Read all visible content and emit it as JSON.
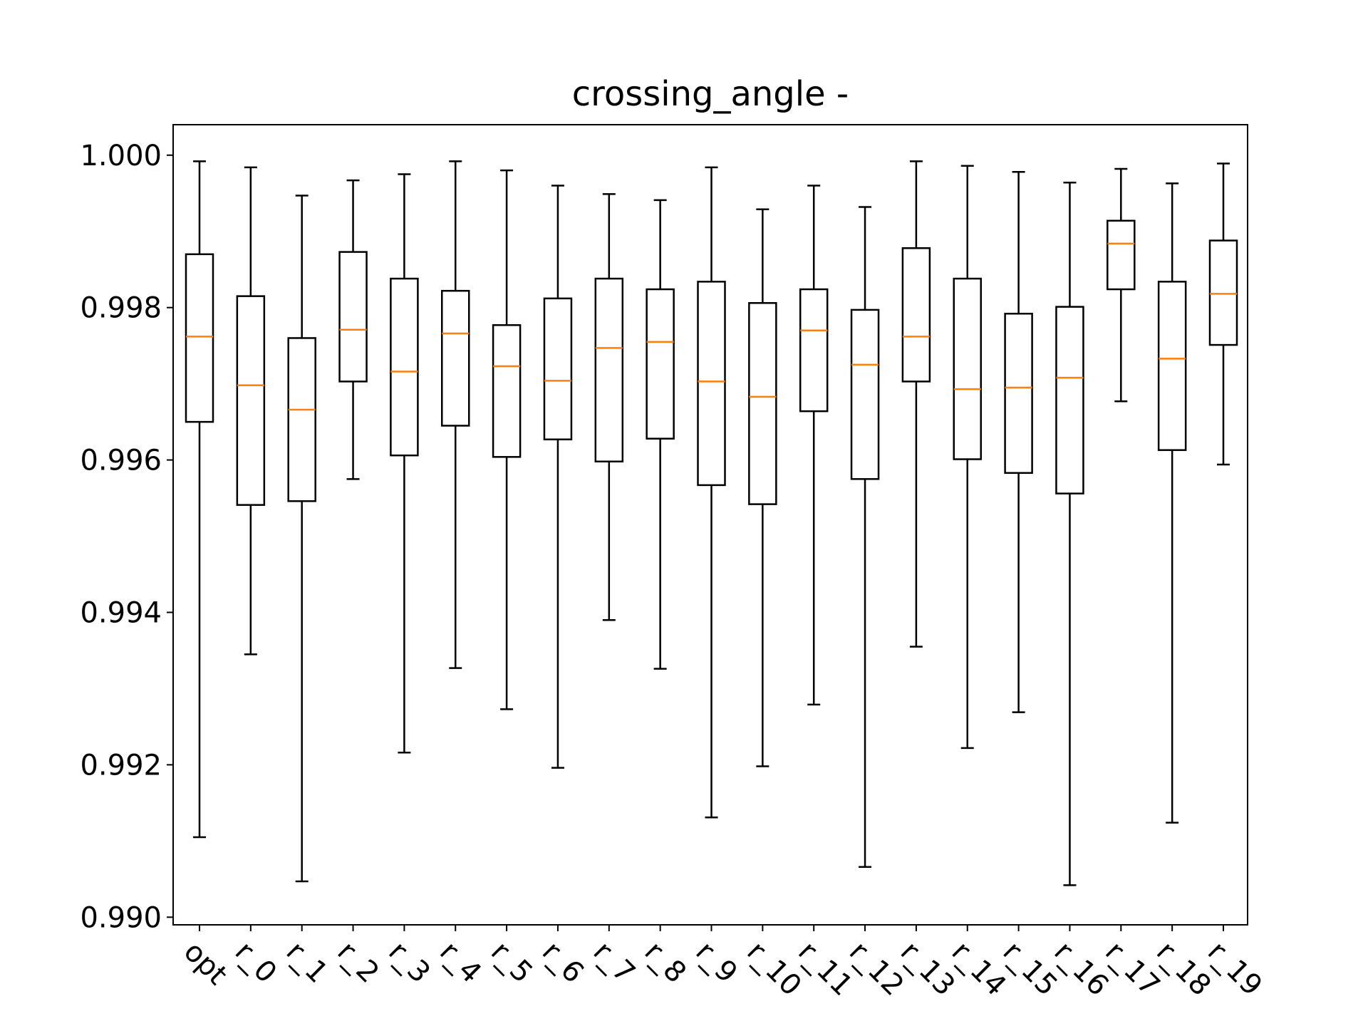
{
  "chart_data": {
    "type": "box",
    "title": "crossing_angle -",
    "xlabel": "",
    "ylabel": "",
    "ylim": [
      0.9899,
      1.0004
    ],
    "yticks": [
      "0.990",
      "0.992",
      "0.994",
      "0.996",
      "0.998",
      "1.000"
    ],
    "ytick_values": [
      0.99,
      0.992,
      0.994,
      0.996,
      0.998,
      1.0
    ],
    "grid": false,
    "colors": {
      "box": "#000000",
      "median": "#ff7f0e",
      "background": "#ffffff"
    },
    "categories": [
      "opt",
      "r_0",
      "r_1",
      "r_2",
      "r_3",
      "r_4",
      "r_5",
      "r_6",
      "r_7",
      "r_8",
      "r_9",
      "r_10",
      "r_11",
      "r_12",
      "r_13",
      "r_14",
      "r_15",
      "r_16",
      "r_17",
      "r_18",
      "r_19"
    ],
    "boxes": [
      {
        "label": "opt",
        "whislo": 0.99105,
        "q1": 0.9965,
        "median": 0.99762,
        "q3": 0.9987,
        "whishi": 0.99992
      },
      {
        "label": "r_0",
        "whislo": 0.99345,
        "q1": 0.99541,
        "median": 0.99698,
        "q3": 0.99815,
        "whishi": 0.99984
      },
      {
        "label": "r_1",
        "whislo": 0.99047,
        "q1": 0.99546,
        "median": 0.99666,
        "q3": 0.9976,
        "whishi": 0.99947
      },
      {
        "label": "r_2",
        "whislo": 0.99575,
        "q1": 0.99703,
        "median": 0.99771,
        "q3": 0.99873,
        "whishi": 0.99967
      },
      {
        "label": "r_3",
        "whislo": 0.99216,
        "q1": 0.99606,
        "median": 0.99716,
        "q3": 0.99838,
        "whishi": 0.99975
      },
      {
        "label": "r_4",
        "whislo": 0.99327,
        "q1": 0.99645,
        "median": 0.99766,
        "q3": 0.99822,
        "whishi": 0.99992
      },
      {
        "label": "r_5",
        "whislo": 0.99273,
        "q1": 0.99604,
        "median": 0.99723,
        "q3": 0.99777,
        "whishi": 0.9998
      },
      {
        "label": "r_6",
        "whislo": 0.99196,
        "q1": 0.99627,
        "median": 0.99704,
        "q3": 0.99812,
        "whishi": 0.9996
      },
      {
        "label": "r_7",
        "whislo": 0.9939,
        "q1": 0.99598,
        "median": 0.99747,
        "q3": 0.99838,
        "whishi": 0.99949
      },
      {
        "label": "r_8",
        "whislo": 0.99326,
        "q1": 0.99628,
        "median": 0.99755,
        "q3": 0.99824,
        "whishi": 0.99941
      },
      {
        "label": "r_9",
        "whislo": 0.99131,
        "q1": 0.99567,
        "median": 0.99703,
        "q3": 0.99834,
        "whishi": 0.99984
      },
      {
        "label": "r_10",
        "whislo": 0.99198,
        "q1": 0.99542,
        "median": 0.99683,
        "q3": 0.99806,
        "whishi": 0.99929
      },
      {
        "label": "r_11",
        "whislo": 0.99279,
        "q1": 0.99664,
        "median": 0.9977,
        "q3": 0.99824,
        "whishi": 0.9996
      },
      {
        "label": "r_12",
        "whislo": 0.99066,
        "q1": 0.99575,
        "median": 0.99725,
        "q3": 0.99797,
        "whishi": 0.99932
      },
      {
        "label": "r_13",
        "whislo": 0.99355,
        "q1": 0.99703,
        "median": 0.99762,
        "q3": 0.99878,
        "whishi": 0.99992
      },
      {
        "label": "r_14",
        "whislo": 0.99222,
        "q1": 0.99601,
        "median": 0.99693,
        "q3": 0.99838,
        "whishi": 0.99986
      },
      {
        "label": "r_15",
        "whislo": 0.99269,
        "q1": 0.99583,
        "median": 0.99695,
        "q3": 0.99792,
        "whishi": 0.99978
      },
      {
        "label": "r_16",
        "whislo": 0.99042,
        "q1": 0.99556,
        "median": 0.99708,
        "q3": 0.99801,
        "whishi": 0.99964
      },
      {
        "label": "r_17",
        "whislo": 0.99677,
        "q1": 0.99824,
        "median": 0.99884,
        "q3": 0.99914,
        "whishi": 0.99982
      },
      {
        "label": "r_18",
        "whislo": 0.99124,
        "q1": 0.99613,
        "median": 0.99733,
        "q3": 0.99834,
        "whishi": 0.99963
      },
      {
        "label": "r_19",
        "whislo": 0.99594,
        "q1": 0.99751,
        "median": 0.99818,
        "q3": 0.99888,
        "whishi": 0.99989
      }
    ]
  }
}
